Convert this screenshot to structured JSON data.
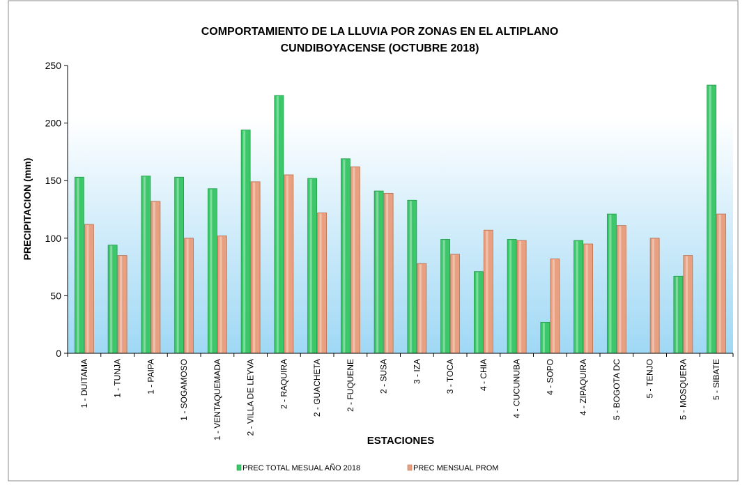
{
  "chart_data": {
    "type": "bar",
    "title": [
      "COMPORTAMIENTO DE LA LLUVIA POR ZONAS EN EL ALTIPLANO",
      "CUNDIBOYACENSE (OCTUBRE 2018)"
    ],
    "x_label": "ESTACIONES",
    "y_label": "PRECIPITACION  (mm)",
    "categories": [
      "1 - DUITAMA",
      "1 - TUNJA",
      "1 - PAIPA",
      "1 - SOGAMOSO",
      "1 - VENTAQUEMADA",
      "2 - VILLA DE LEYVA",
      "2 - RAQUIRA",
      "2 - GUACHETA",
      "2 - FUQUENE",
      "2 - SUSA",
      "3 - IZA",
      "3 - TOCA",
      "4 - CHIA",
      "4 - CUCUNUBA",
      "4 - SOPO",
      "4 - ZIPAQUIRA",
      "5 - BOGOTA DC",
      "5 - TENJO",
      "5 - MOSQUERA",
      "5 - SIBATE"
    ],
    "series": [
      {
        "name": "PREC TOTAL MESUAL AÑO 2018",
        "color": "#3cc86a",
        "values": [
          153,
          94,
          154,
          153,
          143,
          194,
          224,
          152,
          169,
          141,
          133,
          99,
          71,
          99,
          27,
          98,
          121,
          null,
          67,
          233
        ]
      },
      {
        "name": "PREC MENSUAL PROM",
        "color": "#e8a080",
        "values": [
          112,
          85,
          132,
          100,
          102,
          149,
          155,
          122,
          162,
          139,
          78,
          86,
          107,
          98,
          82,
          95,
          111,
          100,
          85,
          121
        ]
      }
    ],
    "ylim": [
      0,
      250
    ],
    "yticks": [
      0,
      50,
      100,
      150,
      200,
      250
    ]
  }
}
